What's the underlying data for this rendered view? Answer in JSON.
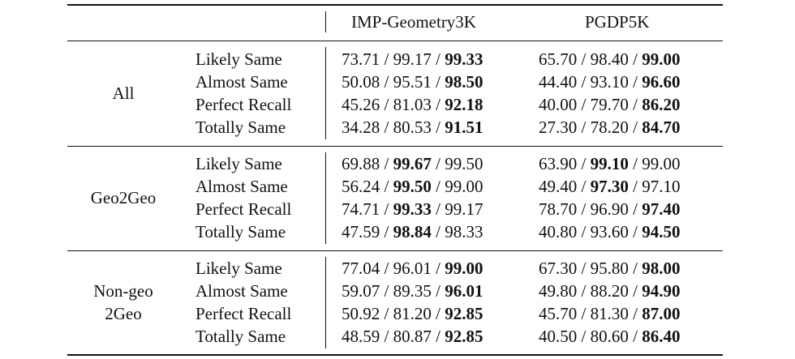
{
  "headers": [
    "",
    "",
    "IMP-Geometry3K",
    "PGDP5K"
  ],
  "groups": [
    {
      "name": [
        "All"
      ],
      "rows": [
        {
          "metric": "Likely Same",
          "imp": [
            "73.71",
            "99.17",
            "99.33"
          ],
          "pgdp": [
            "65.70",
            "98.40",
            "99.00"
          ],
          "imp_bold": 2,
          "pgdp_bold": 2
        },
        {
          "metric": "Almost Same",
          "imp": [
            "50.08",
            "95.51",
            "98.50"
          ],
          "pgdp": [
            "44.40",
            "93.10",
            "96.60"
          ],
          "imp_bold": 2,
          "pgdp_bold": 2
        },
        {
          "metric": "Perfect Recall",
          "imp": [
            "45.26",
            "81.03",
            "92.18"
          ],
          "pgdp": [
            "40.00",
            "79.70",
            "86.20"
          ],
          "imp_bold": 2,
          "pgdp_bold": 2
        },
        {
          "metric": "Totally Same",
          "imp": [
            "34.28",
            "80.53",
            "91.51"
          ],
          "pgdp": [
            "27.30",
            "78.20",
            "84.70"
          ],
          "imp_bold": 2,
          "pgdp_bold": 2
        }
      ]
    },
    {
      "name": [
        "Geo2Geo"
      ],
      "rows": [
        {
          "metric": "Likely Same",
          "imp": [
            "69.88",
            "99.67",
            "99.50"
          ],
          "pgdp": [
            "63.90",
            "99.10",
            "99.00"
          ],
          "imp_bold": 1,
          "pgdp_bold": 1
        },
        {
          "metric": "Almost Same",
          "imp": [
            "56.24",
            "99.50",
            "99.00"
          ],
          "pgdp": [
            "49.40",
            "97.30",
            "97.10"
          ],
          "imp_bold": 1,
          "pgdp_bold": 1
        },
        {
          "metric": "Perfect Recall",
          "imp": [
            "74.71",
            "99.33",
            "99.17"
          ],
          "pgdp": [
            "78.70",
            "96.90",
            "97.40"
          ],
          "imp_bold": 1,
          "pgdp_bold": 2
        },
        {
          "metric": "Totally Same",
          "imp": [
            "47.59",
            "98.84",
            "98.33"
          ],
          "pgdp": [
            "40.80",
            "93.60",
            "94.50"
          ],
          "imp_bold": 1,
          "pgdp_bold": 2
        }
      ]
    },
    {
      "name": [
        "Non-geo",
        "2Geo"
      ],
      "rows": [
        {
          "metric": "Likely Same",
          "imp": [
            "77.04",
            "96.01",
            "99.00"
          ],
          "pgdp": [
            "67.30",
            "95.80",
            "98.00"
          ],
          "imp_bold": 2,
          "pgdp_bold": 2
        },
        {
          "metric": "Almost Same",
          "imp": [
            "59.07",
            "89.35",
            "96.01"
          ],
          "pgdp": [
            "49.80",
            "88.20",
            "94.90"
          ],
          "imp_bold": 2,
          "pgdp_bold": 2
        },
        {
          "metric": "Perfect Recall",
          "imp": [
            "50.92",
            "81.20",
            "92.85"
          ],
          "pgdp": [
            "45.70",
            "81.30",
            "87.00"
          ],
          "imp_bold": 2,
          "pgdp_bold": 2
        },
        {
          "metric": "Totally Same",
          "imp": [
            "48.59",
            "80.87",
            "92.85"
          ],
          "pgdp": [
            "40.50",
            "80.60",
            "86.40"
          ],
          "imp_bold": 2,
          "pgdp_bold": 2
        }
      ]
    }
  ]
}
